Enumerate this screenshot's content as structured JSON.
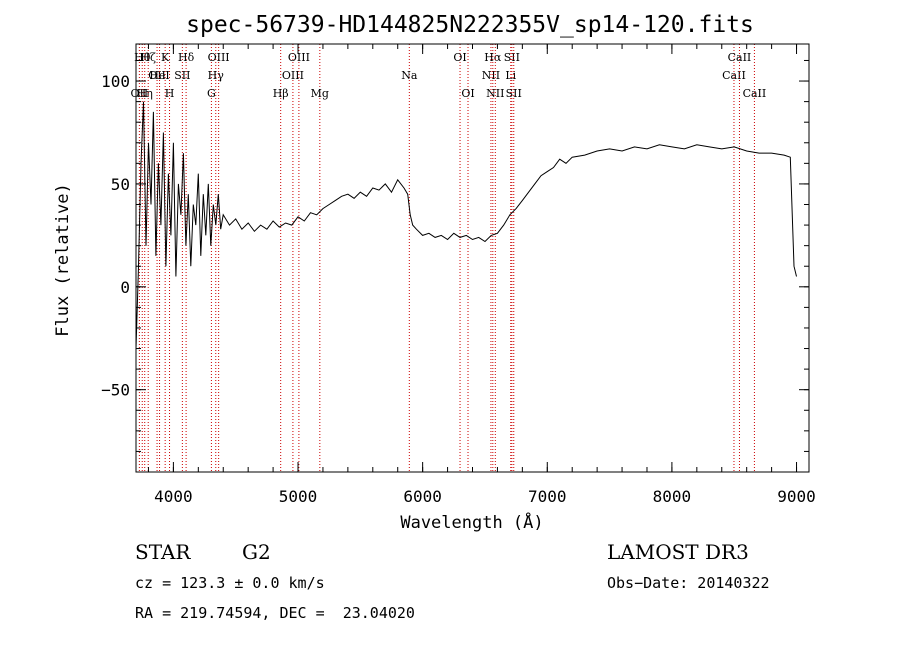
{
  "chart_data": {
    "type": "line",
    "title": "spec-56739-HD144825N222355V_sp14-120.fits",
    "xlabel": "Wavelength (Å)",
    "ylabel": "Flux (relative)",
    "xlim": [
      3700,
      9100
    ],
    "ylim": [
      -90,
      118
    ],
    "x_ticks": [
      4000,
      5000,
      6000,
      7000,
      8000,
      9000
    ],
    "y_ticks": [
      -50,
      0,
      50,
      100
    ],
    "x_tick_labels": [
      "4000",
      "5000",
      "6000",
      "7000",
      "8000",
      "9000"
    ],
    "y_tick_labels": [
      "−50",
      "0",
      "50",
      "100"
    ],
    "series": [
      {
        "name": "spectrum",
        "x": [
          3700,
          3720,
          3740,
          3760,
          3780,
          3800,
          3820,
          3840,
          3860,
          3880,
          3900,
          3920,
          3940,
          3960,
          3980,
          4000,
          4020,
          4040,
          4060,
          4080,
          4100,
          4120,
          4140,
          4160,
          4180,
          4200,
          4220,
          4240,
          4260,
          4280,
          4300,
          4320,
          4340,
          4360,
          4380,
          4400,
          4450,
          4500,
          4550,
          4600,
          4650,
          4700,
          4750,
          4800,
          4850,
          4900,
          4950,
          5000,
          5050,
          5100,
          5150,
          5200,
          5250,
          5300,
          5350,
          5400,
          5450,
          5500,
          5550,
          5600,
          5650,
          5700,
          5750,
          5800,
          5850,
          5880,
          5900,
          5920,
          5950,
          6000,
          6050,
          6100,
          6150,
          6200,
          6250,
          6300,
          6350,
          6400,
          6450,
          6500,
          6550,
          6600,
          6650,
          6700,
          6750,
          6800,
          6850,
          6900,
          6950,
          7000,
          7050,
          7100,
          7150,
          7200,
          7300,
          7400,
          7500,
          7600,
          7700,
          7800,
          7900,
          8000,
          8100,
          8200,
          8300,
          8400,
          8500,
          8600,
          8700,
          8800,
          8900,
          8950,
          8980,
          9000
        ],
        "y": [
          -30,
          10,
          60,
          90,
          20,
          70,
          40,
          85,
          15,
          60,
          30,
          75,
          10,
          55,
          25,
          70,
          5,
          50,
          35,
          65,
          20,
          45,
          10,
          40,
          30,
          55,
          15,
          45,
          25,
          50,
          20,
          40,
          30,
          45,
          28,
          35,
          30,
          33,
          28,
          31,
          27,
          30,
          28,
          32,
          29,
          31,
          30,
          34,
          32,
          36,
          35,
          38,
          40,
          42,
          44,
          45,
          43,
          46,
          44,
          48,
          47,
          50,
          46,
          52,
          48,
          45,
          35,
          30,
          28,
          25,
          26,
          24,
          25,
          23,
          26,
          24,
          25,
          23,
          24,
          22,
          25,
          26,
          30,
          35,
          38,
          42,
          46,
          50,
          54,
          56,
          58,
          62,
          60,
          63,
          64,
          66,
          67,
          66,
          68,
          67,
          69,
          68,
          67,
          69,
          68,
          67,
          68,
          66,
          65,
          65,
          64,
          63,
          10,
          5
        ]
      }
    ],
    "line_markers": [
      {
        "wavelength": 3727,
        "label": "OII",
        "row": 2
      },
      {
        "wavelength": 3750,
        "label": "Hθ",
        "row": 0
      },
      {
        "wavelength": 3770,
        "label": "Hη",
        "row": 2
      },
      {
        "wavelength": 3798,
        "label": "Hζ",
        "row": 0
      },
      {
        "wavelength": 3869,
        "label": "OII",
        "row": 1
      },
      {
        "wavelength": 3889,
        "label": "HeI",
        "row": 1
      },
      {
        "wavelength": 3934,
        "label": "K",
        "row": 0
      },
      {
        "wavelength": 3969,
        "label": "H",
        "row": 2
      },
      {
        "wavelength": 4072,
        "label": "SII",
        "row": 1
      },
      {
        "wavelength": 4102,
        "label": "Hδ",
        "row": 0
      },
      {
        "wavelength": 4305,
        "label": "G",
        "row": 2
      },
      {
        "wavelength": 4340,
        "label": "Hγ",
        "row": 1
      },
      {
        "wavelength": 4363,
        "label": "OIII",
        "row": 0
      },
      {
        "wavelength": 4861,
        "label": "Hβ",
        "row": 2
      },
      {
        "wavelength": 4959,
        "label": "OIII",
        "row": 1
      },
      {
        "wavelength": 5007,
        "label": "OIII",
        "row": 0
      },
      {
        "wavelength": 5175,
        "label": "Mg",
        "row": 2
      },
      {
        "wavelength": 5893,
        "label": "Na",
        "row": 1
      },
      {
        "wavelength": 6300,
        "label": "OI",
        "row": 0
      },
      {
        "wavelength": 6364,
        "label": "OI",
        "row": 2
      },
      {
        "wavelength": 6548,
        "label": "NII",
        "row": 1
      },
      {
        "wavelength": 6563,
        "label": "Hα",
        "row": 0
      },
      {
        "wavelength": 6583,
        "label": "NII",
        "row": 2
      },
      {
        "wavelength": 6707,
        "label": "Li",
        "row": 1
      },
      {
        "wavelength": 6716,
        "label": "SII",
        "row": 0
      },
      {
        "wavelength": 6731,
        "label": "SII",
        "row": 2
      },
      {
        "wavelength": 8498,
        "label": "CaII",
        "row": 1
      },
      {
        "wavelength": 8542,
        "label": "CaII",
        "row": 0
      },
      {
        "wavelength": 8662,
        "label": "CaII",
        "row": 2
      }
    ],
    "marker_color": "#cc0000",
    "line_color": "#000000"
  },
  "info": {
    "object_class": "STAR",
    "subclass": "G2",
    "survey": "LAMOST DR3",
    "redshift": "cz = 123.3 ± 0.0 km/s",
    "obs_date": "Obs−Date: 20140322",
    "coords": "RA = 219.74594, DEC =  23.04020"
  }
}
